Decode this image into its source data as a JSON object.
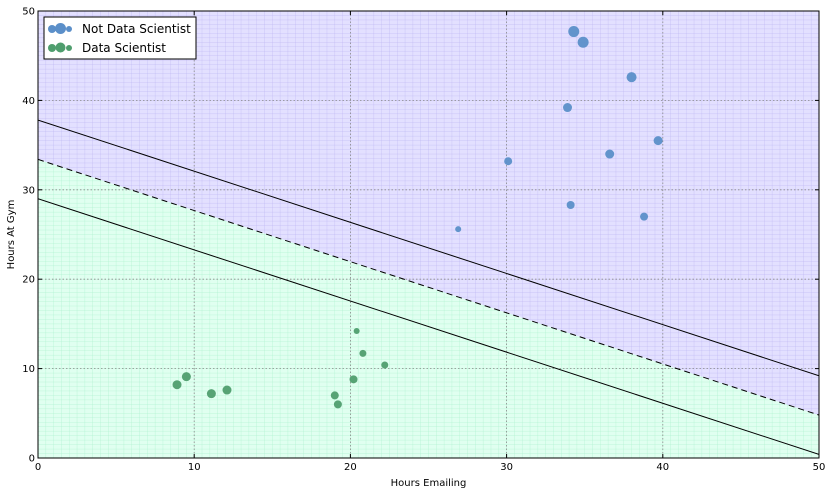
{
  "chart_data": {
    "type": "scatter",
    "xlabel": "Hours Emailing",
    "ylabel": "Hours At Gym",
    "xlim": [
      0,
      50
    ],
    "ylim": [
      0,
      50
    ],
    "xticks": [
      "0",
      "10",
      "20",
      "30",
      "40",
      "50"
    ],
    "yticks": [
      "0",
      "10",
      "20",
      "30",
      "40",
      "50"
    ],
    "grid": true,
    "legend_position": "top-left",
    "regions": {
      "upper_color": "#e3e0ff",
      "lower_color": "#e0fff0",
      "upper_grid_color": "#b8b0f0",
      "lower_grid_color": "#a8f0cc"
    },
    "lines": [
      {
        "style": "solid",
        "x": [
          0,
          50
        ],
        "y": [
          37.8,
          9.2
        ]
      },
      {
        "style": "dashed",
        "x": [
          0,
          50
        ],
        "y": [
          33.4,
          4.8
        ]
      },
      {
        "style": "solid",
        "x": [
          0,
          50
        ],
        "y": [
          29.0,
          0.4
        ]
      }
    ],
    "series": [
      {
        "name": "Not Data Scientist",
        "color": "#5b8fc9",
        "points": [
          {
            "x": 34.3,
            "y": 47.7,
            "size": 5.5
          },
          {
            "x": 34.9,
            "y": 46.5,
            "size": 5.5
          },
          {
            "x": 38.0,
            "y": 42.6,
            "size": 5
          },
          {
            "x": 33.9,
            "y": 39.2,
            "size": 4.5
          },
          {
            "x": 39.7,
            "y": 35.5,
            "size": 4.5
          },
          {
            "x": 36.6,
            "y": 34.0,
            "size": 4.5
          },
          {
            "x": 30.1,
            "y": 33.2,
            "size": 4
          },
          {
            "x": 34.1,
            "y": 28.3,
            "size": 4
          },
          {
            "x": 38.8,
            "y": 27.0,
            "size": 4
          },
          {
            "x": 26.9,
            "y": 25.6,
            "size": 3
          }
        ]
      },
      {
        "name": "Data Scientist",
        "color": "#4f9e6e",
        "points": [
          {
            "x": 20.4,
            "y": 14.2,
            "size": 3
          },
          {
            "x": 20.8,
            "y": 11.7,
            "size": 3.5
          },
          {
            "x": 22.2,
            "y": 10.4,
            "size": 3.5
          },
          {
            "x": 9.5,
            "y": 9.1,
            "size": 4.5
          },
          {
            "x": 20.2,
            "y": 8.8,
            "size": 4
          },
          {
            "x": 8.9,
            "y": 8.2,
            "size": 4.5
          },
          {
            "x": 12.1,
            "y": 7.6,
            "size": 4.5
          },
          {
            "x": 11.1,
            "y": 7.2,
            "size": 4.5
          },
          {
            "x": 19.0,
            "y": 7.0,
            "size": 4
          },
          {
            "x": 19.2,
            "y": 6.0,
            "size": 4
          }
        ]
      }
    ]
  }
}
